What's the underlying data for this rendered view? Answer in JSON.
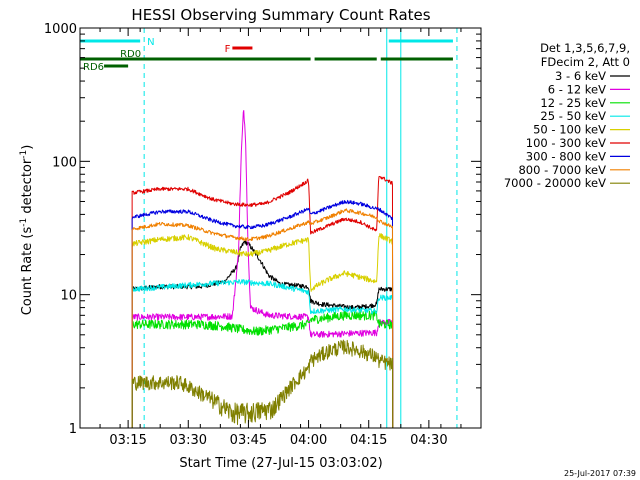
{
  "chart_data": {
    "type": "line",
    "title": "HESSI Observing Summary Count Rates",
    "xlabel": "Start Time (27-Jul-15 03:03:02)",
    "ylabel_main": "Count Rate (s",
    "ylabel_sup1": "-1",
    "ylabel_mid": " detector",
    "ylabel_sup2": "-1",
    "ylabel_end": ")",
    "x_range_minutes": [
      0,
      100
    ],
    "yscale": "log",
    "ylim": [
      1,
      1000
    ],
    "xticks": [
      {
        "label": "03:15",
        "minute": 12
      },
      {
        "label": "03:30",
        "minute": 27
      },
      {
        "label": "03:45",
        "minute": 42
      },
      {
        "label": "04:00",
        "minute": 57
      },
      {
        "label": "04:15",
        "minute": 72
      },
      {
        "label": "04:30",
        "minute": 87
      }
    ],
    "yticks": [
      {
        "label": "1",
        "value": 1
      },
      {
        "label": "10",
        "value": 10
      },
      {
        "label": "100",
        "value": 100
      },
      {
        "label": "1000",
        "value": 1000
      }
    ],
    "legend": {
      "position": "right",
      "header": [
        "Det 1,3,5,6,7,9,",
        "FDecim 2, Att 0"
      ],
      "entries": [
        {
          "label": "3 - 6 keV",
          "color": "#000000"
        },
        {
          "label": "6 - 12 keV",
          "color": "#e000e0"
        },
        {
          "label": "12 - 25 keV",
          "color": "#00e000"
        },
        {
          "label": "25 - 50 keV",
          "color": "#00e8e8"
        },
        {
          "label": "50 - 100 keV",
          "color": "#d8d000"
        },
        {
          "label": "100 - 300 keV",
          "color": "#e00000"
        },
        {
          "label": "300 - 800 keV",
          "color": "#0000e0"
        },
        {
          "label": "800 - 7000 keV",
          "color": "#f08000"
        },
        {
          "label": "7000 - 20000 keV",
          "color": "#808000"
        }
      ]
    },
    "series": [
      {
        "name": "3 - 6 keV",
        "color": "#000000",
        "jitter": 0.5,
        "points": [
          [
            13,
            11
          ],
          [
            20,
            11.5
          ],
          [
            30,
            11.5
          ],
          [
            36,
            12.5
          ],
          [
            39,
            16
          ],
          [
            40,
            22
          ],
          [
            41,
            25
          ],
          [
            42,
            24
          ],
          [
            43,
            22
          ],
          [
            45,
            18
          ],
          [
            47,
            14
          ],
          [
            50,
            12
          ],
          [
            57,
            11.5
          ],
          [
            57.5,
            9
          ],
          [
            60,
            8.5
          ],
          [
            68,
            8
          ],
          [
            72,
            8.2
          ],
          [
            74,
            8.5
          ],
          [
            74.5,
            11
          ],
          [
            78,
            11
          ]
        ]
      },
      {
        "name": "6 - 12 keV",
        "color": "#e000e0",
        "jitter": 0.7,
        "points": [
          [
            13,
            6.8
          ],
          [
            30,
            6.8
          ],
          [
            38,
            6.9
          ],
          [
            39.5,
            20
          ],
          [
            40.2,
            110
          ],
          [
            40.8,
            250
          ],
          [
            41.3,
            150
          ],
          [
            41.8,
            30
          ],
          [
            42.5,
            8
          ],
          [
            47,
            7
          ],
          [
            57,
            6.8
          ],
          [
            57.5,
            5
          ],
          [
            74,
            5.2
          ],
          [
            74.5,
            6.2
          ],
          [
            78,
            6.2
          ]
        ]
      },
      {
        "name": "12 - 25 keV",
        "color": "#00e000",
        "jitter": 1.0,
        "points": [
          [
            13,
            6
          ],
          [
            30,
            6
          ],
          [
            36,
            5.8
          ],
          [
            40,
            5.5
          ],
          [
            44,
            5.3
          ],
          [
            50,
            5.6
          ],
          [
            57,
            6
          ],
          [
            57.5,
            6.5
          ],
          [
            66,
            7
          ],
          [
            74,
            7
          ],
          [
            74.5,
            6
          ],
          [
            78,
            6
          ]
        ]
      },
      {
        "name": "25 - 50 keV",
        "color": "#00e8e8",
        "jitter": 0.6,
        "points": [
          [
            13,
            11
          ],
          [
            22,
            11.5
          ],
          [
            30,
            12
          ],
          [
            40,
            12.5
          ],
          [
            48,
            12
          ],
          [
            57,
            10.5
          ],
          [
            57.5,
            7.5
          ],
          [
            66,
            7.8
          ],
          [
            74,
            7.5
          ],
          [
            74.5,
            9.5
          ],
          [
            78,
            9.5
          ]
        ]
      },
      {
        "name": "50 - 100 keV",
        "color": "#d8d000",
        "jitter": 0.6,
        "points": [
          [
            13,
            24
          ],
          [
            20,
            26
          ],
          [
            27,
            27
          ],
          [
            34,
            22
          ],
          [
            38,
            21
          ],
          [
            42,
            20
          ],
          [
            46,
            21
          ],
          [
            52,
            24
          ],
          [
            57,
            26
          ],
          [
            57.5,
            11
          ],
          [
            62,
            13
          ],
          [
            66,
            14.5
          ],
          [
            70,
            13.5
          ],
          [
            74,
            12.5
          ],
          [
            74.5,
            28
          ],
          [
            78,
            25
          ]
        ]
      },
      {
        "name": "100 - 300 keV",
        "color": "#e00000",
        "jitter": 0.4,
        "points": [
          [
            13,
            58
          ],
          [
            20,
            62
          ],
          [
            27,
            62
          ],
          [
            33,
            52
          ],
          [
            38,
            48
          ],
          [
            42,
            47
          ],
          [
            46,
            48
          ],
          [
            52,
            58
          ],
          [
            57,
            72
          ],
          [
            57.5,
            29
          ],
          [
            62,
            33
          ],
          [
            66,
            37
          ],
          [
            70,
            35
          ],
          [
            74,
            30
          ],
          [
            74.5,
            78
          ],
          [
            78,
            68
          ]
        ]
      },
      {
        "name": "300 - 800 keV",
        "color": "#0000e0",
        "jitter": 0.4,
        "points": [
          [
            13,
            38
          ],
          [
            20,
            42
          ],
          [
            27,
            42
          ],
          [
            33,
            36
          ],
          [
            38,
            33
          ],
          [
            42,
            32
          ],
          [
            46,
            33
          ],
          [
            52,
            38
          ],
          [
            57,
            44
          ],
          [
            57.5,
            40
          ],
          [
            62,
            45
          ],
          [
            66,
            50
          ],
          [
            70,
            48
          ],
          [
            74,
            44
          ],
          [
            74.5,
            44
          ],
          [
            78,
            37
          ]
        ]
      },
      {
        "name": "800 - 7000 keV",
        "color": "#f08000",
        "jitter": 0.4,
        "points": [
          [
            13,
            31
          ],
          [
            20,
            34
          ],
          [
            27,
            33
          ],
          [
            33,
            29
          ],
          [
            38,
            27
          ],
          [
            42,
            26
          ],
          [
            46,
            27
          ],
          [
            52,
            31
          ],
          [
            57,
            35
          ],
          [
            57.5,
            34
          ],
          [
            62,
            38
          ],
          [
            66,
            43
          ],
          [
            70,
            41
          ],
          [
            74,
            38
          ],
          [
            74.5,
            36
          ],
          [
            78,
            32
          ]
        ]
      },
      {
        "name": "7000 - 20000 keV",
        "color": "#808000",
        "jitter": 1.6,
        "points": [
          [
            13,
            2.2
          ],
          [
            25,
            2.2
          ],
          [
            32,
            1.7
          ],
          [
            38,
            1.3
          ],
          [
            42,
            1.3
          ],
          [
            48,
            1.4
          ],
          [
            54,
            2.3
          ],
          [
            57,
            2.8
          ],
          [
            57.5,
            3.2
          ],
          [
            62,
            3.8
          ],
          [
            66,
            4.1
          ],
          [
            70,
            3.8
          ],
          [
            74,
            3.4
          ],
          [
            74.5,
            3.2
          ],
          [
            78,
            3
          ]
        ]
      }
    ],
    "annotations": {
      "night": {
        "label": "N",
        "color": "#00e8e8",
        "bars": [
          [
            0,
            15
          ],
          [
            77,
            93
          ]
        ]
      },
      "flare": {
        "label": "F",
        "color": "#e00000",
        "bar": [
          38,
          43
        ]
      },
      "saa": [
        {
          "label": "RD0",
          "color": "#006000",
          "bars": [
            [
              0,
              57.5
            ],
            [
              58.5,
              74
            ],
            [
              75,
              93
            ]
          ]
        },
        {
          "label": "RD6",
          "color": "#006000",
          "bars": [
            [
              6,
              12
            ]
          ]
        }
      ],
      "cyan_vlines_solid": [
        0,
        76.5,
        80
      ],
      "cyan_vlines_dashed": [
        16,
        94
      ]
    }
  },
  "footer_timestamp": "25-Jul-2017 07:39"
}
